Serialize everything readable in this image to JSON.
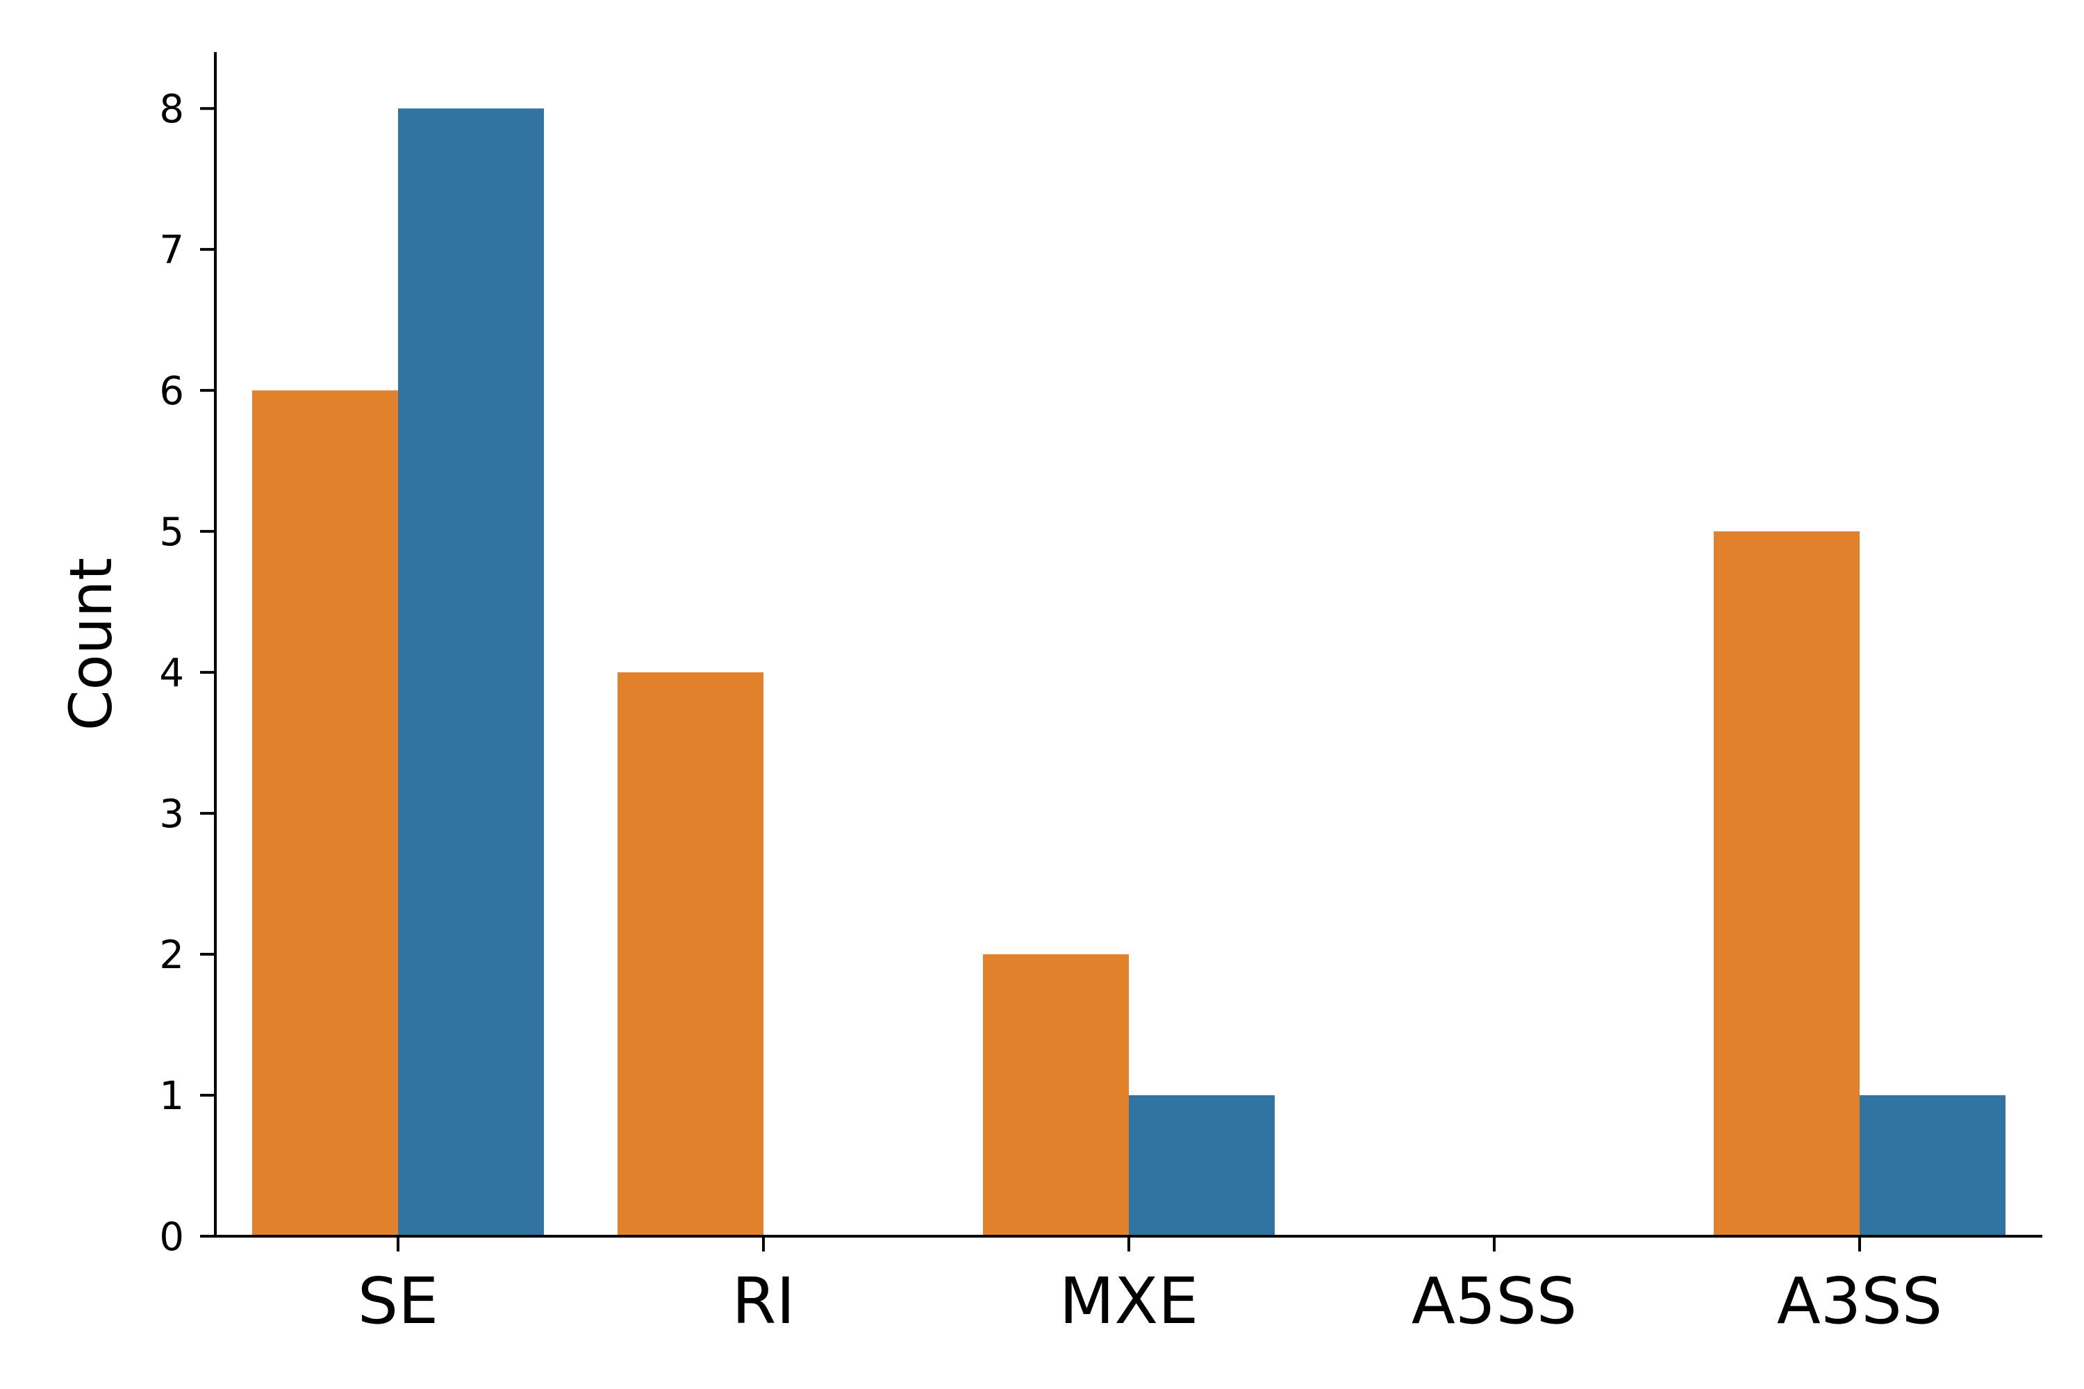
{
  "chart_data": {
    "type": "bar",
    "title": "",
    "xlabel": "",
    "ylabel": "Count",
    "categories": [
      "SE",
      "RI",
      "MXE",
      "A5SS",
      "A3SS"
    ],
    "series": [
      {
        "color": "#e1812c",
        "values": [
          6,
          4,
          2,
          0,
          5
        ]
      },
      {
        "color": "#3274a1",
        "values": [
          8,
          0,
          1,
          0,
          1
        ]
      }
    ],
    "yticks": [
      "0",
      "1",
      "2",
      "3",
      "4",
      "5",
      "6",
      "7",
      "8"
    ],
    "ylim": [
      0,
      8.4
    ],
    "grid": false,
    "legend": "none"
  }
}
